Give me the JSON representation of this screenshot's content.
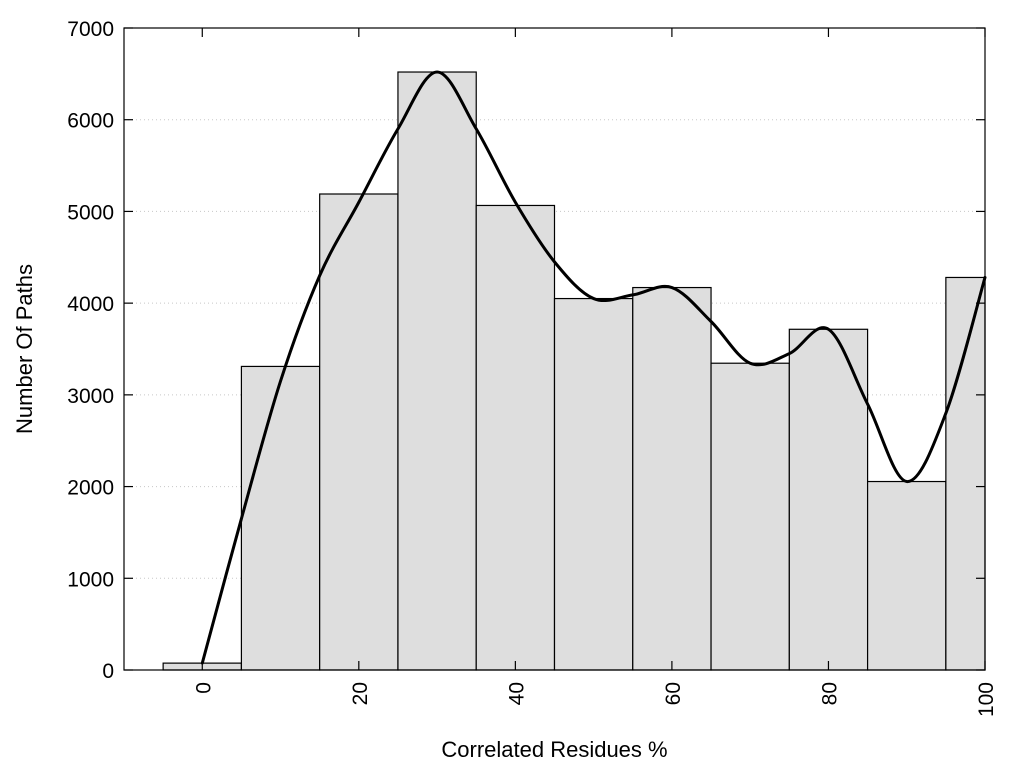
{
  "chart_data": {
    "type": "bar",
    "title": "",
    "xlabel": "Correlated Residues %",
    "ylabel": "Number Of Paths",
    "x": [
      0,
      10,
      20,
      30,
      40,
      50,
      60,
      70,
      80,
      90,
      100
    ],
    "values": [
      75,
      3310,
      5190,
      6520,
      5065,
      4050,
      4170,
      3345,
      3715,
      2055,
      4280
    ],
    "bin_width": 10,
    "xlim": [
      -10,
      100
    ],
    "ylim": [
      0,
      7000
    ],
    "xticks": [
      0,
      20,
      40,
      60,
      80,
      100
    ],
    "yticks": [
      0,
      1000,
      2000,
      3000,
      4000,
      5000,
      6000,
      7000
    ],
    "grid": "horizontal-dotted",
    "legend": "none",
    "bar_color": "#dedede",
    "curve": {
      "type": "smooth-line",
      "color": "#000000",
      "points": [
        [
          0,
          75
        ],
        [
          5,
          1650
        ],
        [
          10,
          3150
        ],
        [
          15,
          4300
        ],
        [
          20,
          5100
        ],
        [
          25,
          5900
        ],
        [
          30,
          6520
        ],
        [
          35,
          5900
        ],
        [
          40,
          5100
        ],
        [
          45,
          4450
        ],
        [
          50,
          4050
        ],
        [
          55,
          4090
        ],
        [
          60,
          4170
        ],
        [
          65,
          3800
        ],
        [
          70,
          3345
        ],
        [
          75,
          3450
        ],
        [
          80,
          3715
        ],
        [
          85,
          2900
        ],
        [
          90,
          2055
        ],
        [
          95,
          2800
        ],
        [
          100,
          4280
        ]
      ]
    }
  }
}
